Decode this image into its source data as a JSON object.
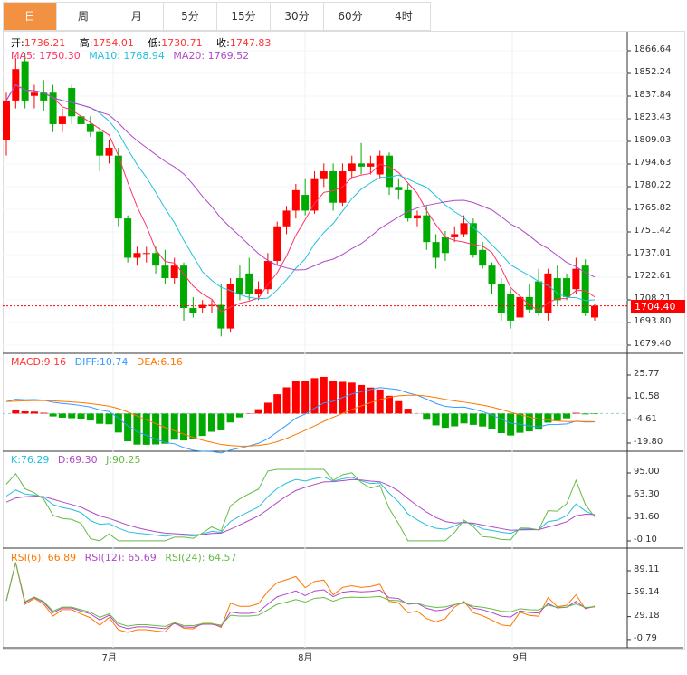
{
  "tabs": [
    "日",
    "周",
    "月",
    "5分",
    "15分",
    "30分",
    "60分",
    "4时"
  ],
  "ohlc_legend": {
    "open_label": "开:",
    "open": "1736.21",
    "high_label": "高:",
    "high": "1754.01",
    "low_label": "低:",
    "low": "1730.71",
    "close_label": "收:",
    "close": "1747.83"
  },
  "ma_legend": {
    "ma5": "MA5: 1750.30",
    "ma10": "MA10: 1768.94",
    "ma20": "MA20: 1769.52"
  },
  "macd_legend": {
    "macd": "MACD:9.16",
    "diff": "DIFF:10.74",
    "dea": "DEA:6.16"
  },
  "kdj_legend": {
    "k": "K:76.29",
    "d": "D:69.30",
    "j": "J:90.25"
  },
  "rsi_legend": {
    "rsi6": "RSI(6): 66.89",
    "rsi12": "RSI(12): 65.69",
    "rsi24": "RSI(24): 64.57"
  },
  "current_price": "1704.40",
  "colors": {
    "up": "#ff0000",
    "down": "#00aa00",
    "ma5": "#ff3366",
    "ma10": "#22c0dd",
    "ma20": "#b048c8",
    "diff": "#3399ff",
    "dea": "#ff7700",
    "accent": "#f39143"
  },
  "chart_data": {
    "type": "candlestick",
    "price_ticks": [
      "1866.64",
      "1852.24",
      "1837.84",
      "1823.43",
      "1809.03",
      "1794.63",
      "1780.22",
      "1765.82",
      "1751.42",
      "1737.01",
      "1722.61",
      "1708.21",
      "1693.80",
      "1679.40"
    ],
    "price_range": [
      1679.4,
      1866.64
    ],
    "macd_ticks": [
      "25.77",
      "10.58",
      "-4.61",
      "-19.80"
    ],
    "kdj_ticks": [
      "95.00",
      "63.30",
      "31.60",
      "-0.10"
    ],
    "rsi_ticks": [
      "89.11",
      "59.14",
      "29.18",
      "-0.79"
    ],
    "x_labels": [
      {
        "label": "7月",
        "index": 11
      },
      {
        "label": "8月",
        "index": 32
      },
      {
        "label": "9月",
        "index": 55
      }
    ],
    "candles": [
      [
        1810,
        1840,
        1800,
        1835
      ],
      [
        1835,
        1862,
        1830,
        1855
      ],
      [
        1860,
        1865,
        1830,
        1835
      ],
      [
        1838,
        1845,
        1830,
        1840
      ],
      [
        1840,
        1848,
        1828,
        1835
      ],
      [
        1840,
        1845,
        1815,
        1820
      ],
      [
        1820,
        1830,
        1815,
        1825
      ],
      [
        1843,
        1845,
        1820,
        1825
      ],
      [
        1825,
        1830,
        1815,
        1820
      ],
      [
        1820,
        1825,
        1812,
        1815
      ],
      [
        1815,
        1818,
        1790,
        1800
      ],
      [
        1800,
        1810,
        1795,
        1805
      ],
      [
        1800,
        1805,
        1755,
        1760
      ],
      [
        1760,
        1762,
        1732,
        1735
      ],
      [
        1735,
        1742,
        1730,
        1738
      ],
      [
        1738,
        1742,
        1732,
        1738
      ],
      [
        1738,
        1742,
        1725,
        1730
      ],
      [
        1730,
        1740,
        1718,
        1722
      ],
      [
        1722,
        1735,
        1718,
        1730
      ],
      [
        1730,
        1732,
        1695,
        1703
      ],
      [
        1703,
        1710,
        1697,
        1700
      ],
      [
        1703,
        1708,
        1700,
        1705
      ],
      [
        1705,
        1708,
        1700,
        1705
      ],
      [
        1705,
        1718,
        1685,
        1690
      ],
      [
        1690,
        1722,
        1688,
        1718
      ],
      [
        1722,
        1730,
        1708,
        1712
      ],
      [
        1725,
        1735,
        1708,
        1712
      ],
      [
        1712,
        1720,
        1708,
        1715
      ],
      [
        1715,
        1738,
        1712,
        1733
      ],
      [
        1733,
        1758,
        1730,
        1755
      ],
      [
        1755,
        1768,
        1750,
        1765
      ],
      [
        1765,
        1782,
        1760,
        1778
      ],
      [
        1775,
        1785,
        1762,
        1765
      ],
      [
        1765,
        1790,
        1763,
        1785
      ],
      [
        1785,
        1795,
        1780,
        1790
      ],
      [
        1790,
        1795,
        1765,
        1770
      ],
      [
        1770,
        1795,
        1768,
        1790
      ],
      [
        1790,
        1800,
        1785,
        1795
      ],
      [
        1795,
        1808,
        1788,
        1793
      ],
      [
        1793,
        1800,
        1788,
        1795
      ],
      [
        1788,
        1803,
        1785,
        1800
      ],
      [
        1800,
        1802,
        1775,
        1780
      ],
      [
        1780,
        1785,
        1772,
        1778
      ],
      [
        1778,
        1782,
        1758,
        1760
      ],
      [
        1760,
        1765,
        1755,
        1762
      ],
      [
        1762,
        1768,
        1740,
        1745
      ],
      [
        1745,
        1750,
        1728,
        1735
      ],
      [
        1748,
        1752,
        1733,
        1738
      ],
      [
        1748,
        1755,
        1745,
        1750
      ],
      [
        1750,
        1762,
        1748,
        1757
      ],
      [
        1757,
        1760,
        1735,
        1737
      ],
      [
        1740,
        1745,
        1728,
        1730
      ],
      [
        1730,
        1732,
        1712,
        1718
      ],
      [
        1718,
        1722,
        1695,
        1700
      ],
      [
        1712,
        1715,
        1690,
        1695
      ],
      [
        1697,
        1712,
        1695,
        1710
      ],
      [
        1710,
        1718,
        1700,
        1702
      ],
      [
        1720,
        1728,
        1698,
        1700
      ],
      [
        1700,
        1728,
        1695,
        1725
      ],
      [
        1722,
        1730,
        1705,
        1708
      ],
      [
        1722,
        1725,
        1708,
        1710
      ],
      [
        1715,
        1735,
        1712,
        1728
      ],
      [
        1730,
        1734,
        1698,
        1700
      ],
      [
        1697,
        1706,
        1695,
        1704.4
      ]
    ]
  }
}
